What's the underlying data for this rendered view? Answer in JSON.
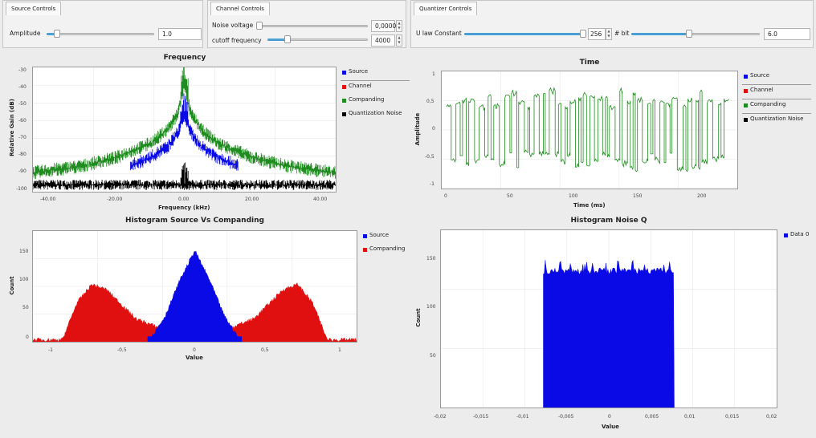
{
  "colors": {
    "source": "#0a0ae6",
    "channel": "#e01010",
    "companding": "#1e8c1e",
    "noise": "#000000",
    "accent": "#4a9fd6"
  },
  "controls": {
    "source": {
      "tab": "Source Controls",
      "amplitude_label": "Amplitude",
      "amplitude_value": "1.0",
      "amplitude_level": 0.1
    },
    "channel": {
      "tab": "Channel Controls",
      "noise_label": "Noise voltage",
      "noise_value": "0,0000",
      "noise_level": 0.0,
      "cutoff_label": "cutoff frequency",
      "cutoff_value": "4000",
      "cutoff_level": 0.2
    },
    "quantizer": {
      "tab": "Quantizer Controls",
      "ulaw_label": "U law Constant",
      "ulaw_value": "256",
      "ulaw_level": 1.0,
      "bit_label": "# bit",
      "bit_value": "6.0",
      "bit_level": 0.45
    }
  },
  "plots": {
    "frequency": {
      "title": "Frequency",
      "xlabel": "Frequency (kHz)",
      "ylabel": "Relative Gain (dB)",
      "xticks": [
        "-40.00",
        "-20.00",
        "0.00",
        "20.00",
        "40.00"
      ],
      "yticks": [
        "-30",
        "-40",
        "-50",
        "-60",
        "-70",
        "-80",
        "-90",
        "-100"
      ],
      "legend": [
        "Source",
        "Channel",
        "Companding",
        "Quantization Noise"
      ]
    },
    "time": {
      "title": "Time",
      "xlabel": "Time (ms)",
      "ylabel": "Amplitude",
      "xticks": [
        "0",
        "50",
        "100",
        "150",
        "200"
      ],
      "yticks": [
        "1",
        "0,5",
        "0",
        "-0,5",
        "-1"
      ],
      "legend": [
        "Source",
        "Channel",
        "Companding",
        "Quantization Noise"
      ]
    },
    "hist_sc": {
      "title": "Histogram Source Vs Companding",
      "xlabel": "Value",
      "ylabel": "Count",
      "xticks": [
        "-1",
        "-0,5",
        "0",
        "0,5",
        "1"
      ],
      "yticks": [
        "150",
        "100",
        "50",
        "0"
      ],
      "legend": [
        "Source",
        "Companding"
      ]
    },
    "hist_q": {
      "title": "Histogram Noise Q",
      "xlabel": "Value",
      "ylabel": "Count",
      "xticks": [
        "-0,02",
        "-0,015",
        "-0,01",
        "-0,005",
        "0",
        "0,005",
        "0,01",
        "0,015",
        "0,02"
      ],
      "yticks": [
        "150",
        "100",
        "50"
      ],
      "legend": [
        "Data 0"
      ]
    }
  },
  "chart_data": [
    {
      "type": "line",
      "title": "Frequency",
      "xlabel": "Frequency (kHz)",
      "ylabel": "Relative Gain (dB)",
      "xlim": [
        -45,
        45
      ],
      "ylim": [
        -100,
        -28
      ],
      "series": [
        {
          "name": "Source",
          "points": [
            [
              -16,
              -85
            ],
            [
              -10,
              -80
            ],
            [
              -5,
              -74
            ],
            [
              -2,
              -66
            ],
            [
              0,
              -55
            ],
            [
              2,
              -66
            ],
            [
              5,
              -74
            ],
            [
              10,
              -80
            ],
            [
              16,
              -85
            ]
          ]
        },
        {
          "name": "Channel",
          "points": []
        },
        {
          "name": "Companding",
          "points": [
            [
              -45,
              -89
            ],
            [
              -30,
              -85
            ],
            [
              -20,
              -80
            ],
            [
              -10,
              -72
            ],
            [
              -5,
              -64
            ],
            [
              -2,
              -55
            ],
            [
              0,
              -38
            ],
            [
              2,
              -55
            ],
            [
              5,
              -64
            ],
            [
              10,
              -72
            ],
            [
              20,
              -80
            ],
            [
              30,
              -85
            ],
            [
              45,
              -89
            ]
          ]
        },
        {
          "name": "Quantization Noise",
          "points": [
            [
              -45,
              -96
            ],
            [
              0,
              -96
            ],
            [
              45,
              -96
            ]
          ]
        }
      ]
    },
    {
      "type": "line",
      "title": "Time",
      "xlabel": "Time (ms)",
      "ylabel": "Amplitude",
      "xlim": [
        0,
        225
      ],
      "ylim": [
        -1,
        1
      ],
      "series": [
        {
          "name": "Companding",
          "amplitude_range": [
            -0.75,
            0.75
          ]
        }
      ]
    },
    {
      "type": "bar",
      "title": "Histogram Source Vs Companding",
      "xlabel": "Value",
      "ylabel": "Count",
      "xlim": [
        -1.1,
        1.1
      ],
      "ylim": [
        0,
        170
      ],
      "series": [
        {
          "name": "Source",
          "points": [
            [
              -0.3,
              5
            ],
            [
              -0.2,
              40
            ],
            [
              -0.1,
              95
            ],
            [
              0,
              140
            ],
            [
              0.1,
              95
            ],
            [
              0.2,
              40
            ],
            [
              0.3,
              5
            ]
          ]
        },
        {
          "name": "Companding",
          "points": [
            [
              -0.9,
              3
            ],
            [
              -0.8,
              60
            ],
            [
              -0.7,
              88
            ],
            [
              -0.6,
              80
            ],
            [
              -0.4,
              35
            ],
            [
              -0.2,
              18
            ],
            [
              0,
              10
            ],
            [
              0.2,
              18
            ],
            [
              0.4,
              35
            ],
            [
              0.6,
              80
            ],
            [
              0.7,
              88
            ],
            [
              0.8,
              60
            ],
            [
              0.9,
              3
            ]
          ]
        }
      ]
    },
    {
      "type": "bar",
      "title": "Histogram Noise Q",
      "xlabel": "Value",
      "ylabel": "Count",
      "xlim": [
        -0.02,
        0.02
      ],
      "ylim": [
        0,
        170
      ],
      "series": [
        {
          "name": "Data 0",
          "points": [
            [
              -0.0078,
              128
            ],
            [
              0.0078,
              128
            ]
          ]
        }
      ]
    }
  ]
}
